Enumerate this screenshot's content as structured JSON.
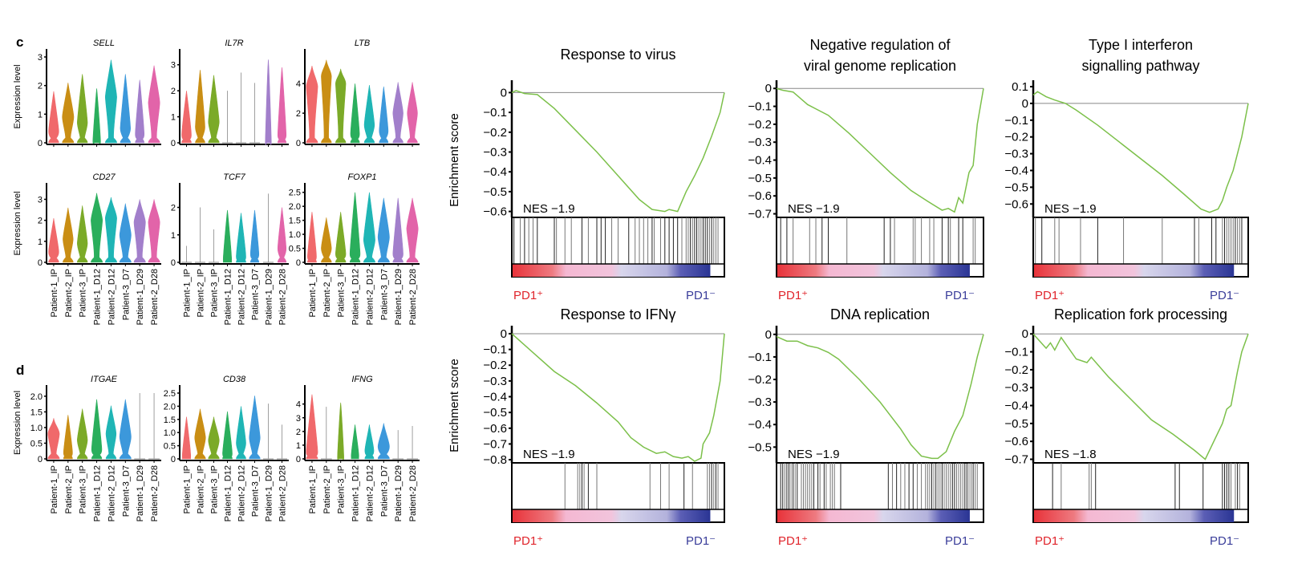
{
  "panel_labels": {
    "c": "c",
    "d": "d"
  },
  "violin_ylabel": "Expression level",
  "samples": [
    "Patient-1_IP",
    "Patient-2_IP",
    "Patient-3_IP",
    "Patient-1_D12",
    "Patient-2_D12",
    "Patient-3_D7",
    "Patient-1_D29",
    "Patient-2_D28"
  ],
  "sample_colors": [
    "#F0696B",
    "#C98E14",
    "#7BAA28",
    "#2AAE5C",
    "#1FB5B5",
    "#3C98DB",
    "#A27FCB",
    "#E264A9"
  ],
  "gsea_ylabel": "Enrichment score",
  "gsea_xlabels": {
    "left": "PD1⁺",
    "right": "PD1⁻",
    "left_color": "#E0242B",
    "right_color": "#3A3E9A"
  },
  "chart_data": [
    {
      "type": "violin",
      "title": "SELL",
      "panel": "c",
      "ylim": [
        0,
        3
      ],
      "yticks": [
        "0",
        "1",
        "2",
        "3"
      ],
      "max": [
        1.8,
        2.1,
        2.4,
        1.9,
        2.9,
        2.4,
        2.2,
        2.7
      ],
      "shape": "mid",
      "med": [
        0.4,
        0.9,
        0.7,
        0.05,
        1.6,
        0.5,
        0.3,
        1.4
      ],
      "width": [
        0.8,
        0.9,
        0.8,
        0.6,
        0.9,
        0.8,
        0.7,
        0.9
      ]
    },
    {
      "type": "violin",
      "title": "IL7R",
      "panel": "c",
      "ylim": [
        0,
        3.3
      ],
      "yticks": [
        "0",
        "1",
        "2",
        "3"
      ],
      "max": [
        2.0,
        2.8,
        2.6,
        2.0,
        2.7,
        2.3,
        3.2,
        2.9
      ],
      "med": [
        0.3,
        0.6,
        0.8,
        0.0,
        0.0,
        0.0,
        0.0,
        0.3
      ],
      "width": [
        0.8,
        0.8,
        0.9,
        0.05,
        0.05,
        0.05,
        0.5,
        0.7
      ]
    },
    {
      "type": "violin",
      "title": "LTB",
      "panel": "c",
      "ylim": [
        0,
        5.8
      ],
      "yticks": [
        "0",
        "2",
        "4"
      ],
      "max": [
        5.2,
        5.6,
        5.0,
        4.0,
        3.9,
        3.8,
        4.1,
        4.1
      ],
      "med": [
        3.8,
        4.5,
        4.0,
        0.6,
        1.2,
        0.8,
        2.0,
        2.0
      ],
      "width": [
        0.9,
        0.8,
        0.8,
        0.7,
        0.8,
        0.7,
        0.8,
        0.8
      ]
    },
    {
      "type": "violin",
      "title": "CD27",
      "panel": "c",
      "ylim": [
        0,
        3.4
      ],
      "yticks": [
        "0",
        "1",
        "2",
        "3"
      ],
      "max": [
        2.1,
        2.6,
        2.7,
        3.3,
        3.1,
        2.8,
        3.0,
        3.0
      ],
      "med": [
        0.5,
        1.1,
        0.9,
        2.0,
        2.1,
        1.3,
        1.9,
        1.9
      ],
      "width": [
        0.8,
        0.8,
        0.8,
        0.9,
        0.9,
        0.9,
        0.9,
        0.9
      ]
    },
    {
      "type": "violin",
      "title": "TCF7",
      "panel": "c",
      "ylim": [
        0,
        2.6
      ],
      "yticks": [
        "0",
        "1",
        "2"
      ],
      "max": [
        0.6,
        2.0,
        1.2,
        1.9,
        1.8,
        1.9,
        2.5,
        2.0
      ],
      "med": [
        0.0,
        0.0,
        0.0,
        0.1,
        0.2,
        0.3,
        0.0,
        0.5
      ],
      "width": [
        0.05,
        0.05,
        0.05,
        0.7,
        0.8,
        0.7,
        0.05,
        0.7
      ]
    },
    {
      "type": "violin",
      "title": "FOXP1",
      "panel": "c",
      "ylim": [
        0,
        2.55
      ],
      "yticks": [
        "0",
        "0.5",
        "1.0",
        "1.5",
        "2.0",
        "2.5"
      ],
      "max": [
        1.8,
        1.6,
        1.8,
        2.5,
        2.5,
        2.3,
        2.3,
        2.3
      ],
      "med": [
        0.2,
        0.5,
        0.3,
        0.3,
        0.8,
        0.9,
        0.3,
        1.2
      ],
      "width": [
        0.7,
        0.8,
        0.8,
        0.8,
        0.9,
        0.9,
        0.8,
        0.9
      ]
    },
    {
      "type": "violin",
      "title": "ITGAE",
      "panel": "d",
      "ylim": [
        0,
        2.1
      ],
      "yticks": [
        "0",
        "0.5",
        "1.0",
        "1.5",
        "2.0"
      ],
      "max": [
        1.3,
        1.4,
        1.6,
        1.9,
        1.7,
        1.9,
        2.1,
        2.1
      ],
      "med": [
        0.8,
        0.2,
        0.6,
        0.3,
        0.8,
        0.7,
        0.0,
        0.0
      ],
      "width": [
        0.9,
        0.7,
        0.8,
        0.8,
        0.8,
        0.9,
        0.05,
        0.05
      ]
    },
    {
      "type": "violin",
      "title": "CD38",
      "panel": "d",
      "ylim": [
        0,
        2.5
      ],
      "yticks": [
        "0",
        "0.5",
        "1.0",
        "1.5",
        "2.0",
        "2.5"
      ],
      "max": [
        1.6,
        1.9,
        1.6,
        1.8,
        2.0,
        2.4,
        2.1,
        1.3
      ],
      "med": [
        0.1,
        0.8,
        0.7,
        0.2,
        0.6,
        0.8,
        0.0,
        0.0
      ],
      "width": [
        0.7,
        0.9,
        0.9,
        0.8,
        0.8,
        0.9,
        0.05,
        0.05
      ]
    },
    {
      "type": "violin",
      "title": "IFNG",
      "panel": "d",
      "ylim": [
        0,
        4.8
      ],
      "yticks": [
        "0",
        "1",
        "2",
        "3",
        "4"
      ],
      "max": [
        4.7,
        3.8,
        4.1,
        2.5,
        2.5,
        2.6,
        2.1,
        2.4
      ],
      "med": [
        0.5,
        0.0,
        0.1,
        0.2,
        0.6,
        0.9,
        0.0,
        0.0
      ],
      "width": [
        0.9,
        0.1,
        0.5,
        0.6,
        0.7,
        0.9,
        0.05,
        0.05
      ]
    },
    {
      "type": "line",
      "title": "Response to virus",
      "nes": "NES −1.9",
      "ylim": [
        -0.63,
        0.03
      ],
      "yticks": [
        0,
        -0.1,
        -0.2,
        -0.3,
        -0.4,
        -0.5,
        -0.6
      ],
      "x": [
        0,
        0.02,
        0.06,
        0.12,
        0.2,
        0.3,
        0.4,
        0.5,
        0.6,
        0.66,
        0.72,
        0.74,
        0.78,
        0.82,
        0.86,
        0.9,
        0.94,
        0.98,
        1.0
      ],
      "y": [
        0,
        0.01,
        -0.005,
        -0.01,
        -0.08,
        -0.19,
        -0.3,
        -0.42,
        -0.54,
        -0.59,
        -0.6,
        -0.59,
        -0.6,
        -0.5,
        -0.42,
        -0.33,
        -0.22,
        -0.1,
        0
      ]
    },
    {
      "type": "line",
      "title": "Negative regulation of viral genome replication",
      "nes": "NES −1.9",
      "ylim": [
        -0.72,
        0.01
      ],
      "yticks": [
        0,
        -0.1,
        -0.2,
        -0.3,
        -0.4,
        -0.5,
        -0.6,
        -0.7
      ],
      "x": [
        0,
        0.03,
        0.08,
        0.15,
        0.25,
        0.35,
        0.45,
        0.55,
        0.65,
        0.73,
        0.8,
        0.83,
        0.86,
        0.88,
        0.9,
        0.93,
        0.95,
        0.97,
        1.0
      ],
      "y": [
        0,
        -0.01,
        -0.02,
        -0.09,
        -0.15,
        -0.25,
        -0.36,
        -0.47,
        -0.57,
        -0.63,
        -0.68,
        -0.67,
        -0.69,
        -0.61,
        -0.64,
        -0.47,
        -0.43,
        -0.2,
        0
      ]
    },
    {
      "type": "line",
      "title": "Type I interferon signalling pathway",
      "nes": "NES −1.9",
      "ylim": [
        -0.68,
        0.1
      ],
      "yticks": [
        0.1,
        0,
        -0.1,
        -0.2,
        -0.3,
        -0.4,
        -0.5,
        -0.6
      ],
      "x": [
        0,
        0.02,
        0.06,
        0.1,
        0.15,
        0.2,
        0.3,
        0.4,
        0.5,
        0.6,
        0.7,
        0.78,
        0.82,
        0.86,
        0.88,
        0.9,
        0.93,
        0.95,
        0.97,
        1.0
      ],
      "y": [
        0.05,
        0.07,
        0.04,
        0.02,
        0.0,
        -0.04,
        -0.13,
        -0.23,
        -0.33,
        -0.43,
        -0.54,
        -0.63,
        -0.65,
        -0.63,
        -0.58,
        -0.5,
        -0.4,
        -0.3,
        -0.2,
        0
      ]
    },
    {
      "type": "line",
      "title": "Response to IFNγ",
      "nes": "NES −1.9",
      "ylim": [
        -0.82,
        0.01
      ],
      "yticks": [
        0,
        -0.1,
        -0.2,
        -0.3,
        -0.4,
        -0.5,
        -0.6,
        -0.7,
        -0.8
      ],
      "x": [
        0,
        0.1,
        0.2,
        0.3,
        0.4,
        0.5,
        0.56,
        0.62,
        0.68,
        0.72,
        0.76,
        0.8,
        0.83,
        0.86,
        0.89,
        0.9,
        0.93,
        0.95,
        0.98,
        1.0
      ],
      "y": [
        0,
        -0.12,
        -0.24,
        -0.33,
        -0.44,
        -0.56,
        -0.66,
        -0.72,
        -0.76,
        -0.75,
        -0.78,
        -0.79,
        -0.78,
        -0.81,
        -0.79,
        -0.7,
        -0.63,
        -0.52,
        -0.3,
        0
      ]
    },
    {
      "type": "line",
      "title": "DNA replication",
      "nes": "NES −1.9",
      "ylim": [
        -0.57,
        0.01
      ],
      "yticks": [
        0,
        -0.1,
        -0.2,
        -0.3,
        -0.4,
        -0.5
      ],
      "x": [
        0,
        0.05,
        0.1,
        0.15,
        0.2,
        0.25,
        0.3,
        0.4,
        0.5,
        0.6,
        0.65,
        0.7,
        0.75,
        0.78,
        0.82,
        0.86,
        0.9,
        0.94,
        0.97,
        1.0
      ],
      "y": [
        -0.01,
        -0.03,
        -0.03,
        -0.05,
        -0.06,
        -0.08,
        -0.11,
        -0.2,
        -0.3,
        -0.42,
        -0.49,
        -0.54,
        -0.55,
        -0.55,
        -0.52,
        -0.43,
        -0.36,
        -0.22,
        -0.1,
        0
      ]
    },
    {
      "type": "line",
      "title": "Replication fork processing",
      "nes": "NES −1.8",
      "ylim": [
        -0.72,
        0.01
      ],
      "yticks": [
        0,
        -0.1,
        -0.2,
        -0.3,
        -0.4,
        -0.5,
        -0.6,
        -0.7
      ],
      "x": [
        0,
        0.06,
        0.08,
        0.1,
        0.13,
        0.2,
        0.25,
        0.27,
        0.35,
        0.45,
        0.55,
        0.65,
        0.75,
        0.8,
        0.88,
        0.9,
        0.92,
        0.95,
        0.97,
        1.0
      ],
      "y": [
        0,
        -0.08,
        -0.05,
        -0.09,
        -0.02,
        -0.14,
        -0.16,
        -0.13,
        -0.24,
        -0.36,
        -0.48,
        -0.56,
        -0.65,
        -0.7,
        -0.5,
        -0.42,
        -0.4,
        -0.21,
        -0.1,
        0
      ]
    }
  ],
  "gsea_hits": [
    [
      0.01,
      0.04,
      0.06,
      0.08,
      0.1,
      0.12,
      0.2,
      0.21,
      0.25,
      0.28,
      0.33,
      0.36,
      0.4,
      0.42,
      0.44,
      0.47,
      0.5,
      0.55,
      0.58,
      0.6,
      0.62,
      0.64,
      0.66,
      0.67,
      0.7,
      0.72,
      0.74,
      0.76,
      0.78,
      0.8,
      0.82,
      0.83,
      0.84,
      0.85,
      0.86,
      0.87,
      0.88,
      0.89,
      0.9,
      0.91,
      0.92,
      0.93,
      0.94,
      0.95,
      0.96,
      0.97
    ],
    [
      0.02,
      0.05,
      0.08,
      0.16,
      0.19,
      0.22,
      0.25,
      0.34,
      0.52,
      0.55,
      0.57,
      0.66,
      0.67,
      0.7,
      0.74,
      0.76,
      0.8,
      0.83,
      0.84,
      0.88,
      0.9,
      0.95,
      0.96
    ],
    [
      0.01,
      0.04,
      0.1,
      0.12,
      0.22,
      0.3,
      0.42,
      0.6,
      0.75,
      0.77,
      0.85,
      0.83,
      0.88,
      0.89,
      0.9,
      0.91,
      0.92,
      0.93,
      0.94,
      0.95,
      0.96,
      0.97
    ],
    [
      0.25,
      0.31,
      0.32,
      0.33,
      0.34,
      0.36,
      0.4,
      0.65,
      0.7,
      0.74,
      0.81,
      0.85,
      0.92,
      0.93,
      0.94,
      0.95,
      0.96,
      0.97
    ],
    [
      0.02,
      0.03,
      0.04,
      0.05,
      0.06,
      0.07,
      0.08,
      0.09,
      0.1,
      0.12,
      0.13,
      0.14,
      0.15,
      0.16,
      0.17,
      0.18,
      0.2,
      0.21,
      0.23,
      0.24,
      0.26,
      0.27,
      0.28,
      0.31,
      0.54,
      0.56,
      0.58,
      0.6,
      0.62,
      0.64,
      0.66,
      0.68,
      0.7,
      0.72,
      0.73,
      0.74,
      0.75,
      0.76,
      0.77,
      0.78,
      0.79,
      0.8,
      0.81,
      0.82,
      0.83,
      0.84,
      0.85,
      0.86,
      0.87,
      0.88,
      0.89,
      0.9,
      0.91,
      0.92,
      0.93,
      0.94,
      0.95,
      0.96,
      0.97
    ],
    [
      0.09,
      0.13,
      0.26,
      0.27,
      0.29,
      0.66,
      0.68,
      0.79,
      0.88,
      0.89,
      0.9,
      0.91,
      0.92,
      0.94,
      0.95,
      0.96
    ]
  ]
}
